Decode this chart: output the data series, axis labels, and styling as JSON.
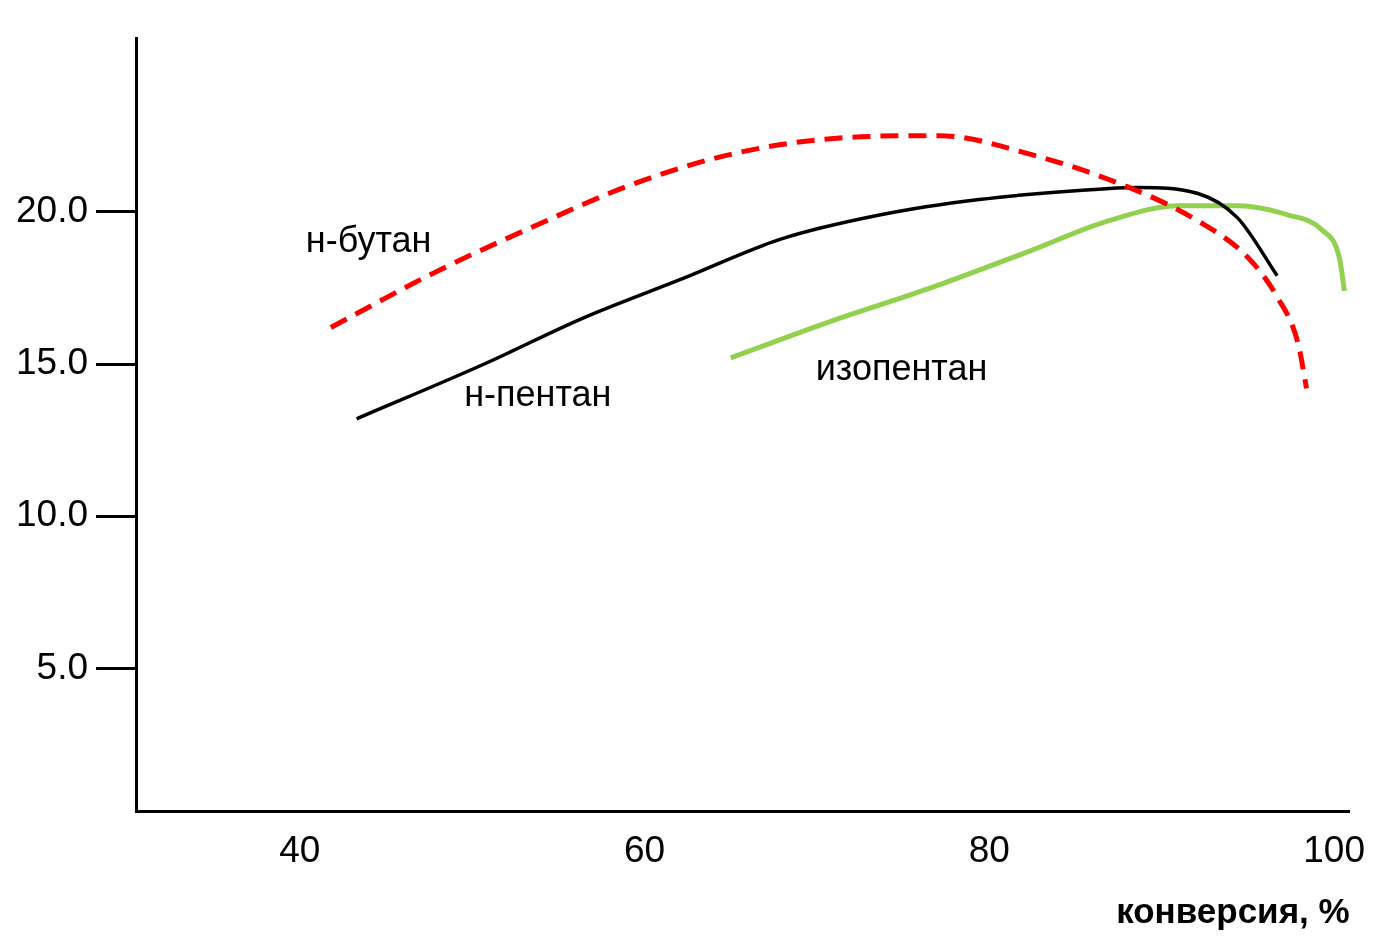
{
  "chart_data": {
    "type": "line",
    "xlabel": "конверсия, %",
    "xlim": [
      30.5,
      100.9
    ],
    "ylim": [
      0.3,
      25.7
    ],
    "xticks": [
      40,
      60,
      80,
      100
    ],
    "yticks": [
      {
        "value": 5,
        "label": "5.0"
      },
      {
        "value": 10,
        "label": "10.0"
      },
      {
        "value": 15,
        "label": "15.0"
      },
      {
        "value": 20,
        "label": "20.0"
      }
    ],
    "grid": false,
    "legend": false,
    "marker": "none",
    "series": [
      {
        "name": "н-бутан",
        "color": "#ff0000",
        "line_style": "dashed",
        "x": [
          41.8,
          47.8,
          53.5,
          59.3,
          65.1,
          70.8,
          77.1,
          82.3,
          88.1,
          92.1,
          95.0,
          96.7,
          97.9,
          98.4
        ],
        "values": [
          16.2,
          18.0,
          19.5,
          20.9,
          21.9,
          22.4,
          22.5,
          21.9,
          20.8,
          19.7,
          18.5,
          17.2,
          15.7,
          14.2
        ]
      },
      {
        "name": "н-пентан",
        "color": "#000000",
        "line_style": "solid",
        "x": [
          43.3,
          50.7,
          56.4,
          62.2,
          67.9,
          73.7,
          79.4,
          85.2,
          88.6,
          92.1,
          94.4,
          96.7
        ],
        "values": [
          13.2,
          15.0,
          16.5,
          17.8,
          19.1,
          19.9,
          20.4,
          20.7,
          20.8,
          20.6,
          19.8,
          17.9
        ]
      },
      {
        "name": "изопентан",
        "color": "#92d050",
        "line_style": "solid",
        "x": [
          65.0,
          70.8,
          76.6,
          82.3,
          86.9,
          91.0,
          94.4,
          97.3,
          99.3,
          100.3,
          100.6
        ],
        "values": [
          15.2,
          16.4,
          17.5,
          18.7,
          19.7,
          20.2,
          20.2,
          19.9,
          19.4,
          18.5,
          17.4
        ]
      }
    ]
  }
}
